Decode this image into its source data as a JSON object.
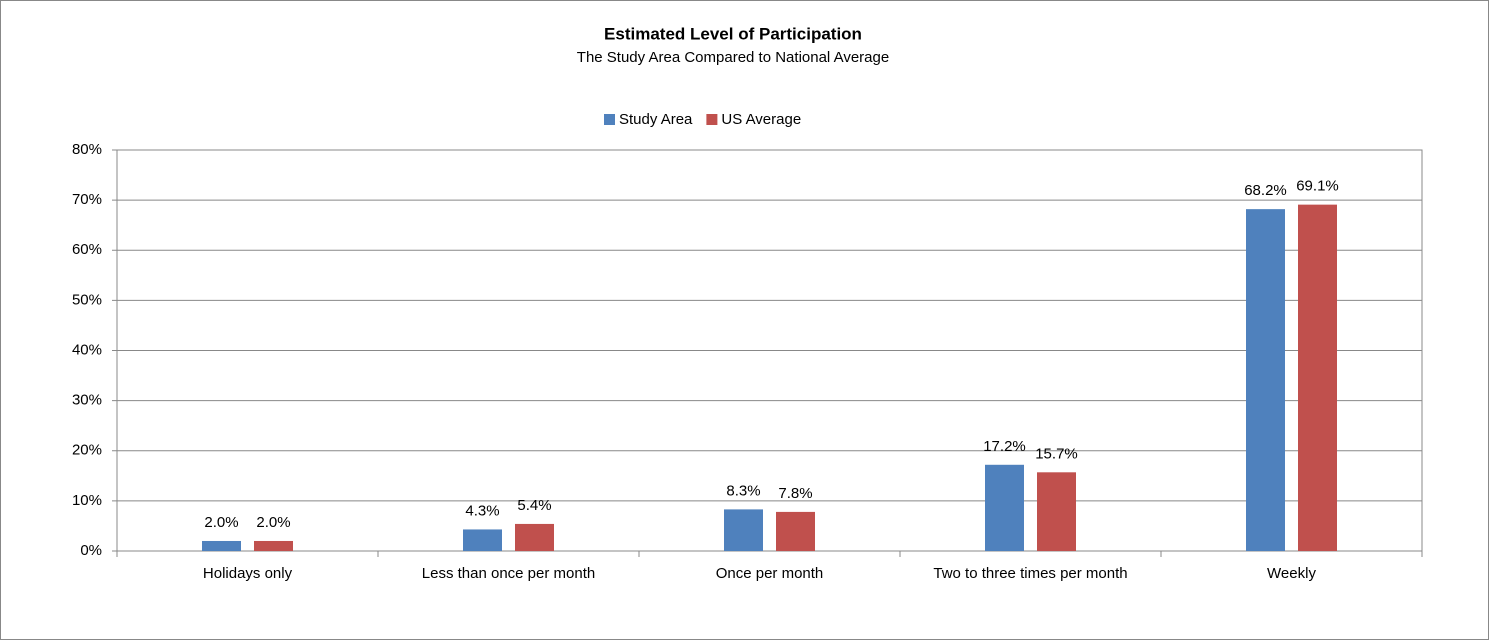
{
  "chart_data": {
    "type": "bar",
    "title": "Estimated Level of Participation",
    "subtitle": "The Study Area Compared to National Average",
    "categories": [
      "Holidays only",
      "Less than once per month",
      "Once per month",
      "Two to three times per month",
      "Weekly"
    ],
    "series": [
      {
        "name": "Study Area",
        "color": "#4f81bd",
        "values": [
          2.0,
          4.3,
          8.3,
          17.2,
          68.2
        ],
        "value_labels": [
          "2.0%",
          "4.3%",
          "8.3%",
          "17.2%",
          "68.2%"
        ]
      },
      {
        "name": "US Average",
        "color": "#c0504d",
        "values": [
          2.0,
          5.4,
          7.8,
          15.7,
          69.1
        ],
        "value_labels": [
          "2.0%",
          "5.4%",
          "7.8%",
          "15.7%",
          "69.1%"
        ]
      }
    ],
    "ylim": [
      0,
      80
    ],
    "yticks": [
      {
        "value": 0,
        "label": "0%"
      },
      {
        "value": 10,
        "label": "10%"
      },
      {
        "value": 20,
        "label": "20%"
      },
      {
        "value": 30,
        "label": "30%"
      },
      {
        "value": 40,
        "label": "40%"
      },
      {
        "value": 50,
        "label": "50%"
      },
      {
        "value": 60,
        "label": "60%"
      },
      {
        "value": 70,
        "label": "70%"
      },
      {
        "value": 80,
        "label": "80%"
      }
    ],
    "grid": true,
    "legend": "top"
  }
}
